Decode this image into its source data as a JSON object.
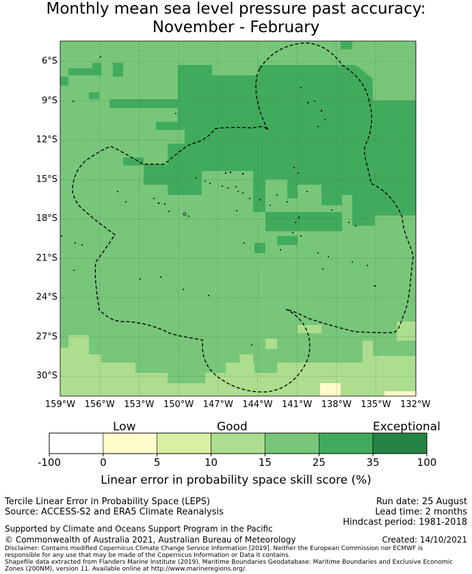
{
  "title_line1": "Monthly mean sea level pressure past accuracy:",
  "title_line2": "November - February",
  "lat_ticks": [
    "6°S",
    "9°S",
    "12°S",
    "15°S",
    "18°S",
    "21°S",
    "24°S",
    "27°S",
    "30°S"
  ],
  "lat_values": [
    6,
    9,
    12,
    15,
    18,
    21,
    24,
    27,
    30
  ],
  "lon_ticks": [
    "159°W",
    "156°W",
    "153°W",
    "150°W",
    "147°W",
    "144°W",
    "141°W",
    "138°W",
    "135°W",
    "132°W"
  ],
  "lon_values": [
    159,
    156,
    153,
    150,
    147,
    144,
    141,
    138,
    135,
    132
  ],
  "colorbar": {
    "categories": [
      "Low",
      "Good",
      "Exceptional"
    ],
    "ticks": [
      "-100",
      "0",
      "5",
      "10",
      "15",
      "25",
      "35",
      "100"
    ],
    "colors": [
      "#ffffff",
      "#fffccc",
      "#d9f0a3",
      "#addd8e",
      "#78c679",
      "#41ab5d",
      "#238443"
    ],
    "label": "Linear error in probability space skill score (%)"
  },
  "info_left": {
    "line1": "Tercile Linear Error in Probability Space (LEPS)",
    "line2": "Source: ACCESS-S2 and ERA5 Climate Reanalysis"
  },
  "info_right": {
    "run_date": "Run date: 25 August",
    "lead_time": "Lead time: 2 months",
    "hindcast": "Hindcast period: 1981-2018"
  },
  "support": "Supported by Climate and Oceans Support Program in the Pacific",
  "copyright": "© Commonwealth of Australia 2021, Australian Bureau of Meteorology",
  "created": "Created: 14/10/2021",
  "disclaimer1": "Disclaimer: Contains modified Copernicus Climate Change Service Information [2019]. Neither the European Commission nor ECMWF is",
  "disclaimer2": "responsible for any use that may be made of the Copernicus Information or Data it contains.",
  "disclaimer3": "Shapefile data extracted from Flanders Marine Institute (2019). Maritime Boundaries Geodatabase: Maritime Boundaries and Exclusive Economic",
  "disclaimer4": "Zones (200NM), version 11. Available online at http://www.marineregions.org/."
}
